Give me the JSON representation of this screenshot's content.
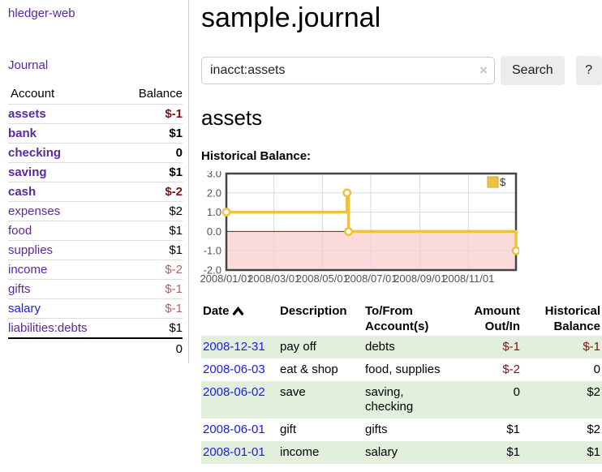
{
  "sidebar": {
    "app_title": "hledger-web",
    "journal_link": "Journal",
    "accounts_header": {
      "account": "Account",
      "balance": "Balance"
    },
    "accounts": [
      {
        "name": "assets",
        "level": 0,
        "bold": true,
        "balance": "$-1",
        "balance_class": "negative-strong"
      },
      {
        "name": "bank",
        "level": 1,
        "bold": true,
        "balance": "$1",
        "balance_class": ""
      },
      {
        "name": "checking",
        "level": 2,
        "bold": true,
        "balance": "0",
        "balance_class": ""
      },
      {
        "name": "saving",
        "level": 2,
        "bold": true,
        "balance": "$1",
        "balance_class": ""
      },
      {
        "name": "cash",
        "level": 1,
        "bold": true,
        "balance": "$-2",
        "balance_class": "negative-strong"
      },
      {
        "name": "expenses",
        "level": 0,
        "bold": false,
        "balance": "$2",
        "balance_class": ""
      },
      {
        "name": "food",
        "level": 1,
        "bold": false,
        "balance": "$1",
        "balance_class": ""
      },
      {
        "name": "supplies",
        "level": 1,
        "bold": false,
        "balance": "$1",
        "balance_class": ""
      },
      {
        "name": "income",
        "level": 0,
        "bold": false,
        "balance": "$-2",
        "balance_class": "negative-soft"
      },
      {
        "name": "gifts",
        "level": 1,
        "bold": false,
        "balance": "$-1",
        "balance_class": "negative-soft"
      },
      {
        "name": "salary",
        "level": 1,
        "bold": false,
        "link_style": "new",
        "balance": "$-1",
        "balance_class": "negative-soft"
      },
      {
        "name": "liabilities:debts",
        "level": 0,
        "bold": false,
        "balance": "$1",
        "balance_class": ""
      }
    ],
    "total": "0"
  },
  "header": {
    "title": "sample.journal"
  },
  "search": {
    "query": "inacct:assets",
    "clear_icon": "×",
    "button_label": "Search",
    "help_label": "?"
  },
  "main": {
    "account_heading": "assets"
  },
  "chart_data": {
    "type": "line",
    "step": true,
    "title": "Historical Balance:",
    "series": [
      {
        "name": "$",
        "points": [
          [
            "2008-01-01",
            1
          ],
          [
            "2008-06-01",
            2
          ],
          [
            "2008-06-03",
            0
          ],
          [
            "2008-12-31",
            -1
          ]
        ]
      }
    ],
    "x_range": [
      "2008-01-01",
      "2008-12-31"
    ],
    "ylim": [
      -2,
      3
    ],
    "y_ticks": [
      "3.0",
      "2.0",
      "1.0",
      "0.0",
      "-1.0",
      "-2.0"
    ],
    "x_tick_dates": [
      "2008-01-01",
      "2008-03-01",
      "2008-05-01",
      "2008-07-01",
      "2008-09-01",
      "2008-11-01"
    ],
    "x_tick_labels": [
      "2008/01/01",
      "2008/03/01",
      "2008/05/01",
      "2008/07/01",
      "2008/09/01",
      "2008/11/01"
    ],
    "legend": {
      "label": "$",
      "position": "top-right"
    },
    "grid": true,
    "colors": {
      "line": "#edc240",
      "legend_border": "#cfa52e",
      "negative_region": "#fadada",
      "zero_line": "#8b1616",
      "grid": "#d9d9d9",
      "border": "#454545",
      "tick_text": "#545454"
    }
  },
  "register": {
    "columns": {
      "date": "Date",
      "description": "Description",
      "accounts": "To/From Account(s)",
      "amount": "Amount Out/In",
      "balance": "Historical Balance"
    },
    "rows": [
      {
        "date": "2008-12-31",
        "description": "pay off",
        "accounts": "debts",
        "amount": "$-1",
        "amount_neg": true,
        "balance": "$-1",
        "balance_neg": true
      },
      {
        "date": "2008-06-03",
        "description": "eat & shop",
        "accounts": "food, supplies",
        "amount": "$-2",
        "amount_neg": true,
        "balance": "0",
        "balance_neg": false
      },
      {
        "date": "2008-06-02",
        "description": "save",
        "accounts": "saving, checking",
        "amount": "0",
        "amount_neg": false,
        "balance": "$2",
        "balance_neg": false
      },
      {
        "date": "2008-06-01",
        "description": "gift",
        "accounts": "gifts",
        "amount": "$1",
        "amount_neg": false,
        "balance": "$2",
        "balance_neg": false
      },
      {
        "date": "2008-01-01",
        "description": "income",
        "accounts": "salary",
        "amount": "$1",
        "amount_neg": false,
        "balance": "$1",
        "balance_neg": false
      }
    ]
  }
}
